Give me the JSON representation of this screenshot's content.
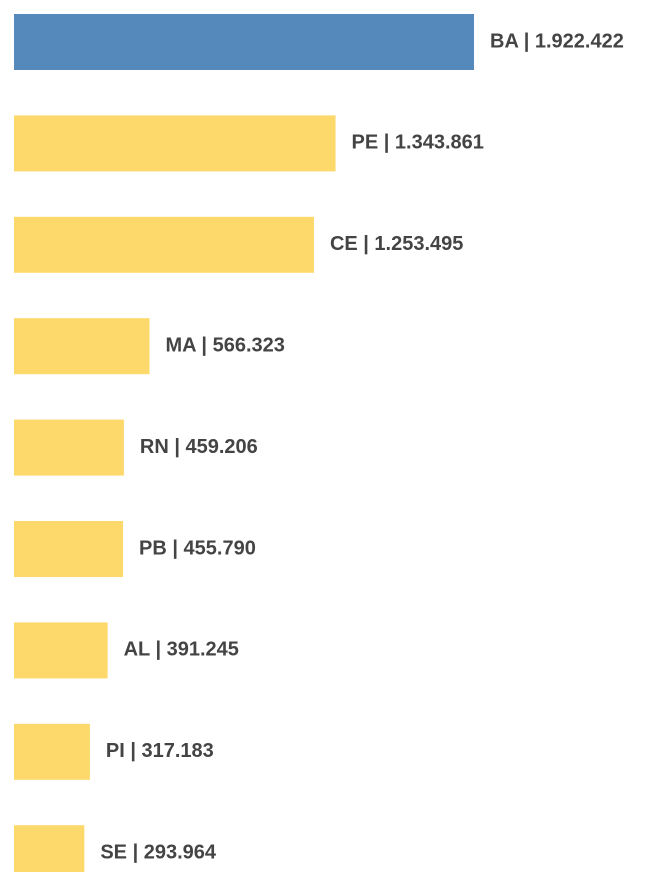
{
  "chart_data": {
    "type": "bar",
    "orientation": "horizontal",
    "values": [
      1922422,
      1343861,
      1253495,
      566323,
      459206,
      455790,
      391245,
      317183,
      293964
    ],
    "value_labels": [
      "BA | 1.922.422",
      "PE | 1.343.861",
      "CE | 1.253.495",
      "MA | 566.323",
      "RN | 459.206",
      "PB | 455.790",
      "AL | 391.245",
      "PI | 317.183",
      "SE | 293.964"
    ],
    "colors": [
      "#5588bb",
      "#fdd86a",
      "#fdd86a",
      "#fdd86a",
      "#fdd86a",
      "#fdd86a",
      "#fdd86a",
      "#fdd86a",
      "#fdd86a"
    ]
  }
}
